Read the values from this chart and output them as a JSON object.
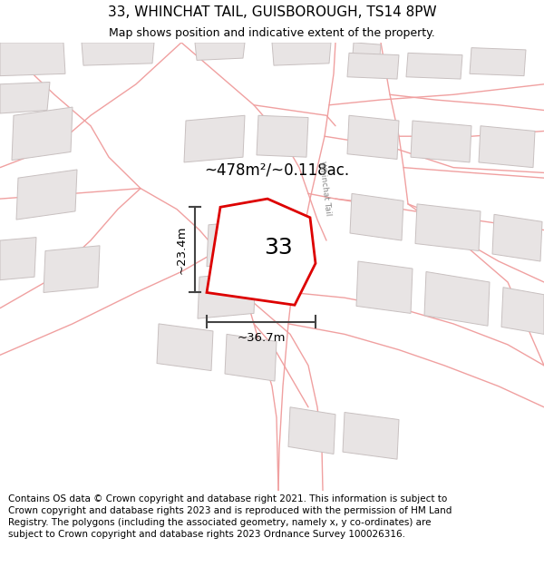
{
  "title_line1": "33, WHINCHAT TAIL, GUISBOROUGH, TS14 8PW",
  "title_line2": "Map shows position and indicative extent of the property.",
  "footer_text": "Contains OS data © Crown copyright and database right 2021. This information is subject to Crown copyright and database rights 2023 and is reproduced with the permission of HM Land Registry. The polygons (including the associated geometry, namely x, y co-ordinates) are subject to Crown copyright and database rights 2023 Ordnance Survey 100026316.",
  "bg_color": "#ffffff",
  "map_bg_color": "#ffffff",
  "plot_color": "#dd0000",
  "road_color": "#f0a0a0",
  "building_edge": "#c8c0c0",
  "building_fill": "#e8e4e4",
  "dim_color": "#444444",
  "area_text": "~478m²/~0.118ac.",
  "plot_number": "33",
  "dim_width": "~36.7m",
  "dim_height": "~23.4m",
  "street_label": "Whinchat Tail",
  "title_fontsize": 11,
  "subtitle_fontsize": 9,
  "footer_fontsize": 7.5
}
